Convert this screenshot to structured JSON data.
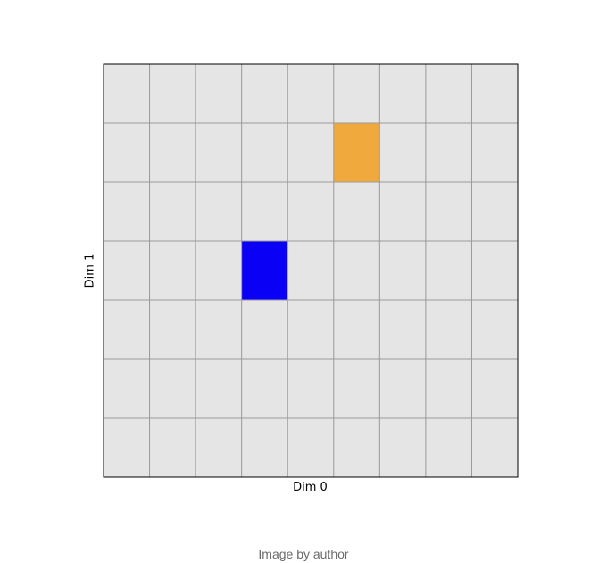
{
  "chart_data": {
    "type": "heatmap",
    "grid": {
      "columns": 9,
      "rows": 7
    },
    "xlabel": "Dim 0",
    "ylabel": "Dim 1",
    "background_cell_color": "#e5e5e5",
    "grid_line_color": "#9a9a9a",
    "highlighted_cells": [
      {
        "col": 3,
        "row": 3,
        "color": "#0a00f5"
      },
      {
        "col": 5,
        "row": 1,
        "color": "#f0a93c"
      }
    ]
  },
  "caption": "Image by author"
}
